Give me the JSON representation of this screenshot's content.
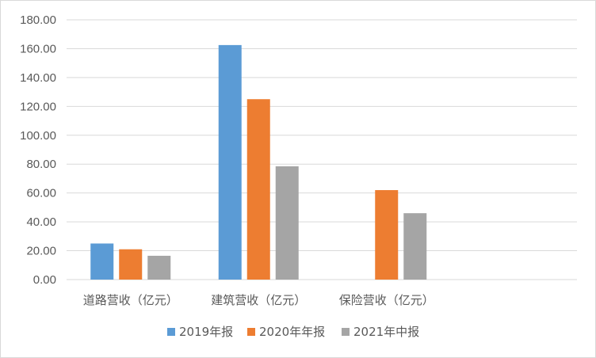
{
  "chart_data": {
    "type": "bar",
    "title": "",
    "xlabel": "",
    "ylabel": "",
    "categories": [
      "道路营收（亿元）",
      "建筑营收（亿元）",
      "保险营收（亿元）"
    ],
    "series": [
      {
        "name": "2019年报",
        "color": "#5b9bd5",
        "values": [
          25.0,
          162.5,
          null
        ]
      },
      {
        "name": "2020年年报",
        "color": "#ed7d31",
        "values": [
          21.0,
          125.0,
          62.0
        ]
      },
      {
        "name": "2021年中报",
        "color": "#a5a5a5",
        "values": [
          16.5,
          78.5,
          46.0
        ]
      }
    ],
    "ylim": [
      0,
      180
    ],
    "yticks": [
      "0.00",
      "20.00",
      "40.00",
      "60.00",
      "80.00",
      "100.00",
      "120.00",
      "140.00",
      "160.00",
      "180.00"
    ],
    "grid": true,
    "legend_position": "bottom"
  }
}
